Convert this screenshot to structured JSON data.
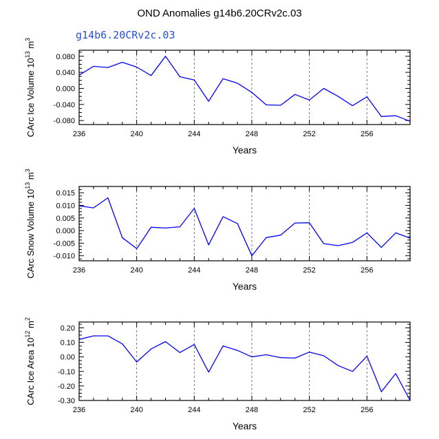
{
  "title": "OND Anomalies g14b6.20CRv2c.03",
  "subtitle": "g14b6.20CRv2c.03",
  "colors": {
    "line": "#0000ff",
    "axis": "#000000",
    "subtitle": "#2b4fd4",
    "grid": "#555555"
  },
  "chart_data": [
    {
      "type": "line",
      "name": "ice-volume",
      "ylabel": "CArc Ice Volume 10",
      "yexp": "13",
      "yunit": " m",
      "yunit_exp": "3",
      "xlabel": "Years",
      "xlim": [
        236,
        259
      ],
      "ylim": [
        -0.09,
        0.095
      ],
      "xticks": [
        "236",
        "240",
        "244",
        "248",
        "252",
        "256"
      ],
      "yticks": [
        "0.080",
        "0.040",
        "0.000",
        "-0.040",
        "-0.080"
      ],
      "grid": "dashed vertical at every 4 years",
      "x": [
        236,
        237,
        238,
        239,
        240,
        241,
        242,
        243,
        244,
        245,
        246,
        247,
        248,
        249,
        250,
        251,
        252,
        253,
        254,
        255,
        256,
        257,
        258,
        259
      ],
      "values": [
        0.033,
        0.055,
        0.052,
        0.065,
        0.053,
        0.032,
        0.08,
        0.029,
        0.021,
        -0.032,
        0.024,
        0.013,
        -0.01,
        -0.041,
        -0.042,
        -0.015,
        -0.029,
        0.0,
        -0.02,
        -0.043,
        -0.021,
        -0.07,
        -0.068,
        -0.082
      ]
    },
    {
      "type": "line",
      "name": "snow-volume",
      "ylabel": "CArc Snow Volume 10",
      "yexp": "13",
      "yunit": " m",
      "yunit_exp": "3",
      "xlabel": "Years",
      "xlim": [
        236,
        259
      ],
      "ylim": [
        -0.012,
        0.0175
      ],
      "xticks": [
        "236",
        "240",
        "244",
        "248",
        "252",
        "256"
      ],
      "yticks": [
        "0.015",
        "0.010",
        "0.005",
        "0.000",
        "-0.005",
        "-0.010"
      ],
      "grid": "dashed vertical at every 4 years",
      "x": [
        236,
        237,
        238,
        239,
        240,
        241,
        242,
        243,
        244,
        245,
        246,
        247,
        248,
        249,
        250,
        251,
        252,
        253,
        254,
        255,
        256,
        257,
        258,
        259
      ],
      "values": [
        0.0098,
        0.009,
        0.013,
        -0.0028,
        -0.0072,
        0.0013,
        0.001,
        0.0015,
        0.0088,
        -0.0057,
        0.0055,
        0.0028,
        -0.01,
        -0.0028,
        -0.0018,
        0.003,
        0.0031,
        -0.0052,
        -0.006,
        -0.0047,
        -0.0009,
        -0.0067,
        -0.0009,
        -0.003
      ]
    },
    {
      "type": "line",
      "name": "ice-area",
      "ylabel": "CArc Ice Area 10",
      "yexp": "12",
      "yunit": " m",
      "yunit_exp": "2",
      "xlabel": "Years",
      "xlim": [
        236,
        259
      ],
      "ylim": [
        -0.3,
        0.24
      ],
      "xticks": [
        "236",
        "240",
        "244",
        "248",
        "252",
        "256"
      ],
      "yticks": [
        "0.20",
        "0.10",
        "0.00",
        "-0.10",
        "-0.20",
        "-0.30"
      ],
      "grid": "dashed vertical at every 4 years",
      "x": [
        236,
        237,
        238,
        239,
        240,
        241,
        242,
        243,
        244,
        245,
        246,
        247,
        248,
        249,
        250,
        251,
        252,
        253,
        254,
        255,
        256,
        257,
        258,
        259
      ],
      "values": [
        0.12,
        0.145,
        0.145,
        0.09,
        -0.035,
        0.055,
        0.105,
        0.03,
        0.085,
        -0.105,
        0.075,
        0.045,
        0.0,
        0.015,
        -0.005,
        -0.008,
        0.033,
        0.008,
        -0.06,
        -0.1,
        0.005,
        -0.24,
        -0.115,
        -0.3
      ]
    }
  ]
}
